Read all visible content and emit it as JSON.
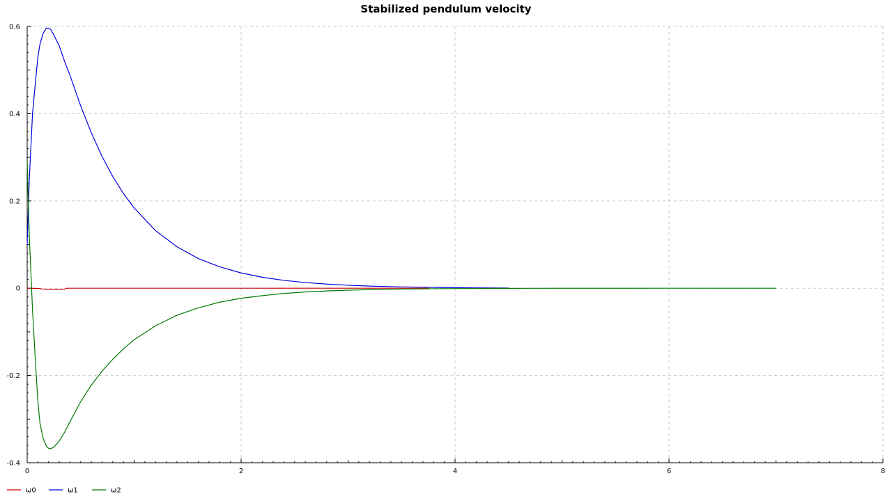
{
  "chart_data": {
    "type": "line",
    "title": "Stabilized pendulum velocity",
    "xlabel": "",
    "ylabel": "",
    "xlim": [
      0,
      8
    ],
    "ylim": [
      -0.4,
      0.6
    ],
    "xticks": [
      0,
      2,
      4,
      6,
      8
    ],
    "yticks": [
      -0.4,
      -0.2,
      0,
      0.2,
      0.4,
      0.6
    ],
    "xtick_labels": [
      "0",
      "2",
      "4",
      "6",
      "8"
    ],
    "ytick_labels": [
      "-0.4",
      "-0.2",
      "0",
      "0.2",
      "0.4",
      "0.6"
    ],
    "grid": true,
    "legend_position": "bottom-left",
    "series": [
      {
        "name": "ω0",
        "color": "#cc0000",
        "x": [
          0,
          0.1,
          0.15,
          0.2,
          0.25,
          0.3,
          0.35,
          0.36,
          0.4,
          1.0,
          2.0,
          3.0,
          3.75
        ],
        "y": [
          0,
          -0.0005,
          -0.002,
          -0.0025,
          -0.0025,
          -0.0025,
          -0.0022,
          -0.0002,
          0,
          0,
          0,
          0,
          0
        ]
      },
      {
        "name": "ω1",
        "color": "#0000dd",
        "x": [
          0,
          0.02,
          0.05,
          0.08,
          0.1,
          0.12,
          0.15,
          0.18,
          0.2,
          0.22,
          0.25,
          0.3,
          0.35,
          0.4,
          0.5,
          0.6,
          0.7,
          0.8,
          0.9,
          1.0,
          1.2,
          1.4,
          1.6,
          1.8,
          2.0,
          2.2,
          2.4,
          2.6,
          2.8,
          3.0,
          3.2,
          3.5,
          3.8,
          4.0,
          4.2,
          4.5
        ],
        "y": [
          0.1,
          0.25,
          0.4,
          0.48,
          0.53,
          0.56,
          0.585,
          0.596,
          0.596,
          0.593,
          0.58,
          0.555,
          0.52,
          0.488,
          0.418,
          0.356,
          0.302,
          0.256,
          0.217,
          0.184,
          0.132,
          0.095,
          0.068,
          0.049,
          0.035,
          0.025,
          0.018,
          0.013,
          0.0095,
          0.0068,
          0.0049,
          0.003,
          0.0018,
          0.0012,
          0.0008,
          0.0004
        ]
      },
      {
        "name": "ω2",
        "color": "#007700",
        "x": [
          0,
          0.02,
          0.05,
          0.08,
          0.1,
          0.12,
          0.15,
          0.18,
          0.2,
          0.22,
          0.25,
          0.3,
          0.35,
          0.4,
          0.5,
          0.6,
          0.7,
          0.8,
          0.9,
          1.0,
          1.2,
          1.4,
          1.6,
          1.8,
          2.0,
          2.2,
          2.4,
          2.6,
          2.8,
          3.0,
          3.2,
          3.5,
          3.8,
          4.0,
          4.5,
          5.0,
          6.0,
          7.0
        ],
        "y": [
          0.29,
          0.12,
          -0.05,
          -0.18,
          -0.26,
          -0.31,
          -0.345,
          -0.362,
          -0.367,
          -0.368,
          -0.364,
          -0.35,
          -0.33,
          -0.306,
          -0.26,
          -0.222,
          -0.19,
          -0.163,
          -0.139,
          -0.118,
          -0.086,
          -0.062,
          -0.045,
          -0.032,
          -0.023,
          -0.017,
          -0.012,
          -0.0087,
          -0.0063,
          -0.0045,
          -0.0033,
          -0.002,
          -0.0012,
          -0.0008,
          -0.0003,
          -0.0001,
          0,
          0
        ]
      }
    ]
  }
}
